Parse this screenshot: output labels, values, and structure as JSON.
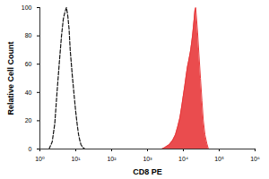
{
  "chart_data": {
    "type": "line",
    "x_label": "CD8 PE",
    "y_label": "Relative Cell Count",
    "log": "x",
    "xlim": [
      1,
      1000000
    ],
    "xticks": [
      {
        "value": 1,
        "label": "10⁰"
      },
      {
        "value": 10,
        "label": "10¹"
      },
      {
        "value": 100,
        "label": "10²"
      },
      {
        "value": 1000,
        "label": "10³"
      },
      {
        "value": 10000,
        "label": "10⁴"
      },
      {
        "value": 100000,
        "label": "10⁵"
      },
      {
        "value": 1000000,
        "label": "10⁶"
      }
    ],
    "ylim": [
      0,
      100
    ],
    "yticks": [
      0,
      20,
      40,
      60,
      80,
      100
    ],
    "series": [
      {
        "type": "line",
        "line_style": "dashed",
        "color": "#111111",
        "x": [
          1.8,
          2.2,
          2.6,
          3,
          3.5,
          4,
          4.5,
          5,
          5.5,
          6,
          6.5,
          7,
          8,
          9,
          10,
          11,
          12,
          13,
          14,
          16,
          18
        ],
        "values": [
          0,
          5,
          18,
          40,
          62,
          80,
          92,
          97,
          100,
          94,
          85,
          70,
          52,
          38,
          26,
          17,
          10,
          6,
          3,
          1,
          0
        ]
      },
      {
        "type": "area",
        "color": "#e8393b",
        "x": [
          2500,
          3000,
          4000,
          5000,
          6000,
          7000,
          8000,
          9000,
          10000,
          11000,
          12000,
          13000,
          14000,
          15000,
          16000,
          17000,
          18000,
          19000,
          20000,
          21000,
          22000,
          23000,
          25000,
          27000,
          30000,
          33000,
          36000,
          40000,
          45000,
          50000
        ],
        "values": [
          0,
          1,
          3,
          6,
          10,
          16,
          22,
          30,
          38,
          45,
          52,
          58,
          62,
          66,
          70,
          75,
          80,
          86,
          92,
          98,
          100,
          94,
          82,
          68,
          50,
          34,
          20,
          10,
          4,
          0
        ]
      }
    ]
  }
}
